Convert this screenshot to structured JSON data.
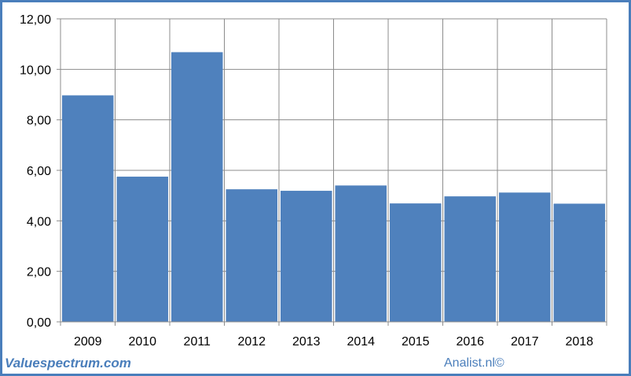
{
  "chart_data": {
    "type": "bar",
    "categories": [
      "2009",
      "2010",
      "2011",
      "2012",
      "2013",
      "2014",
      "2015",
      "2016",
      "2017",
      "2018"
    ],
    "values": [
      8.97,
      5.75,
      10.68,
      5.25,
      5.19,
      5.4,
      4.69,
      4.97,
      5.12,
      4.68
    ],
    "y_ticks": [
      "0,00",
      "2,00",
      "4,00",
      "6,00",
      "8,00",
      "10,00",
      "12,00"
    ],
    "ylim": [
      0,
      12
    ],
    "grid": true,
    "bar_color": "#4f81bd",
    "grid_color": "#8c8c8c"
  },
  "footer": {
    "source": "Valuespectrum.com",
    "credit": "Analist.nl©"
  },
  "colors": {
    "frame": "#4a7ebb",
    "footer_text": "#4a7ebb"
  }
}
